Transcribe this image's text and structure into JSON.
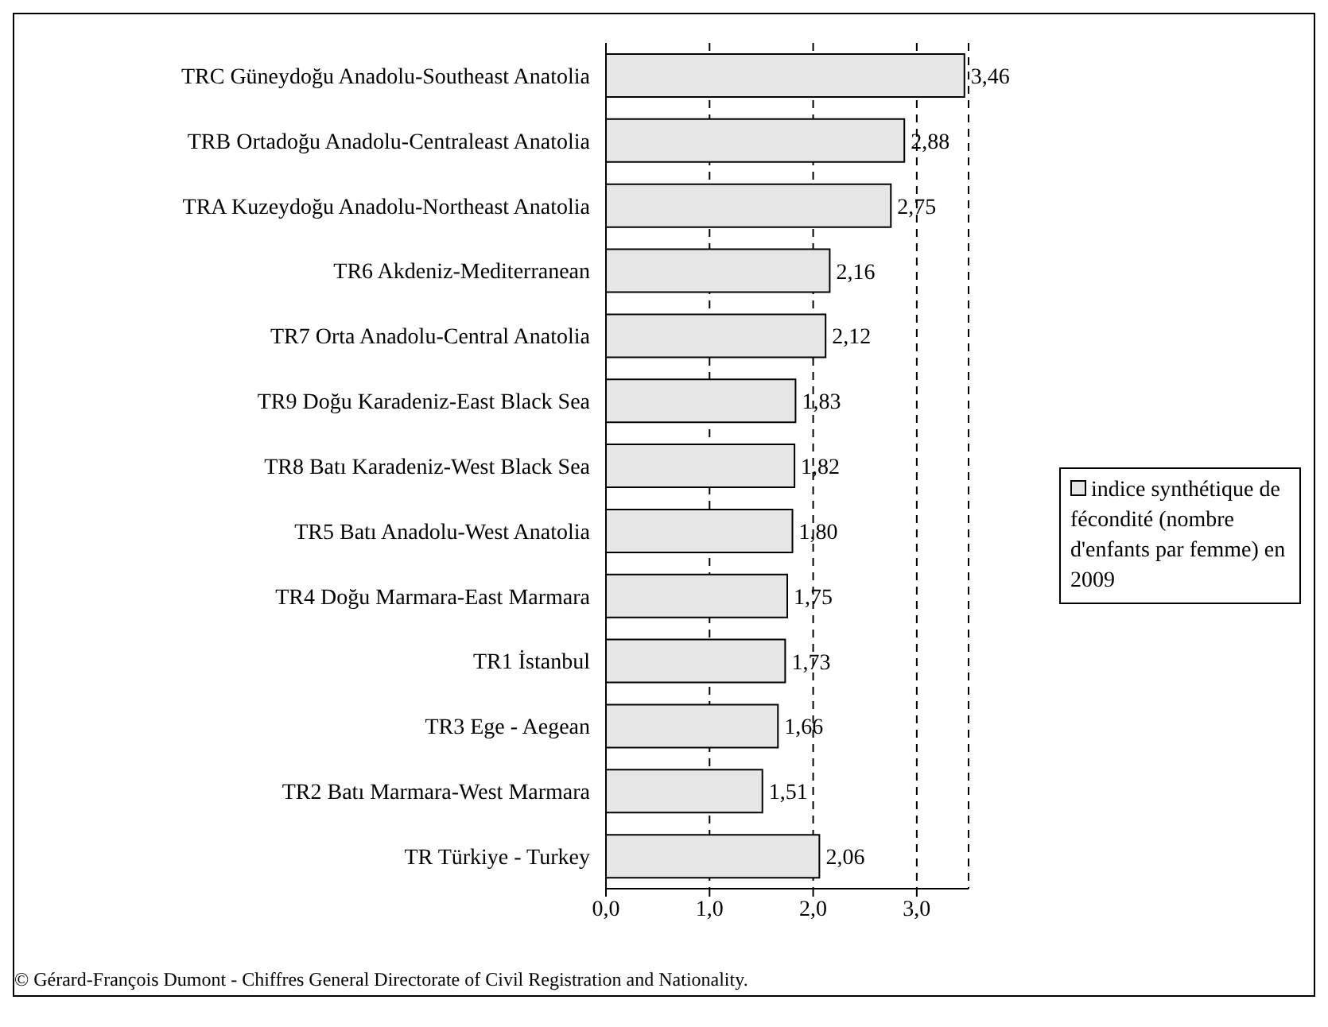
{
  "chart_data": {
    "type": "bar",
    "orientation": "horizontal",
    "categories": [
      "TRC Güneydoğu Anadolu-Southeast Anatolia",
      "TRB Ortadoğu Anadolu-Centraleast Anatolia",
      "TRA Kuzeydoğu Anadolu-Northeast Anatolia",
      "TR6 Akdeniz-Mediterranean",
      "TR7 Orta Anadolu-Central Anatolia",
      "TR9 Doğu Karadeniz-East Black Sea",
      "TR8 Batı Karadeniz-West Black Sea",
      "TR5 Batı Anadolu-West Anatolia",
      "TR4 Doğu Marmara-East Marmara",
      "TR1 İstanbul",
      "TR3 Ege - Aegean",
      "TR2 Batı Marmara-West Marmara",
      "TR Türkiye - Turkey"
    ],
    "series": [
      {
        "name": "indice synthétique de fécondité (nombre d'enfants par femme) en 2009",
        "color": "#e6e6e6",
        "values": [
          3.46,
          2.88,
          2.75,
          2.16,
          2.12,
          1.83,
          1.82,
          1.8,
          1.75,
          1.73,
          1.66,
          1.51,
          2.06
        ],
        "value_labels": [
          "3,46",
          "2,88",
          "2,75",
          "2,16",
          "2,12",
          "1,83",
          "1,82",
          "1,80",
          "1,75",
          "1,73",
          "1,66",
          "1,51",
          "2,06"
        ]
      }
    ],
    "xlim": [
      0,
      3.5
    ],
    "xticks": [
      {
        "value": 0,
        "label": "0,0"
      },
      {
        "value": 1,
        "label": "1,0"
      },
      {
        "value": 2,
        "label": "2,0"
      },
      {
        "value": 3,
        "label": "3,0"
      }
    ],
    "grid": "x",
    "legend": "right",
    "annotations": [
      "© Gérard-François Dumont - Chiffres General Directorate of Civil Registration and Nationality."
    ]
  }
}
